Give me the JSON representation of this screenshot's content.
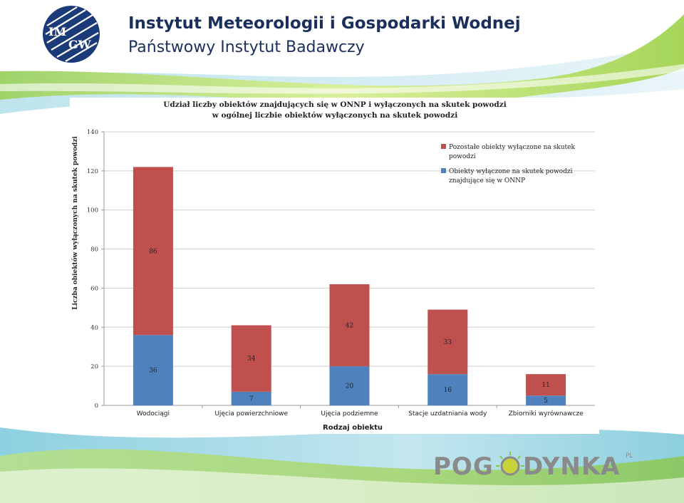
{
  "header": {
    "title": "Instytut Meteorologii i Gospodarki Wodnej",
    "subtitle": "Państwowy Instytut Badawczy",
    "logo_text_top": "IM",
    "logo_text_bottom": "GW"
  },
  "footer": {
    "brand_left": "POG",
    "brand_right": "DYNKA",
    "brand_suffix": "PL"
  },
  "colors": {
    "navy": "#1b2f5c",
    "red_series": "#c0504d",
    "blue_series": "#4f81bd",
    "green_band": "#8cc63f"
  },
  "chart_data": {
    "type": "bar",
    "stacked": true,
    "title_line1": "Udział liczby obiektów znajdujących się w ONNP i wyłączonych na skutek powodzi",
    "title_line2": "w ogólnej liczbie obiektów wyłączonych na skutek powodzi",
    "xlabel": "Rodzaj obiektu",
    "ylabel": "Liczba obiektów wyłączonych na skutek powodzi",
    "ylim": [
      0,
      140
    ],
    "yticks": [
      "0",
      "20",
      "40",
      "60",
      "80",
      "100",
      "120",
      "140"
    ],
    "categories": [
      "Wodociągi",
      "Ujęcia powierzchniowe",
      "Ujęcia podziemne",
      "Stacje uzdatniania wody",
      "Zbiorniki wyrównawcze"
    ],
    "series": [
      {
        "name": "Obiekty wyłączone na skutek powodzi znajdujące się w ONNP",
        "values": [
          36,
          7,
          20,
          16,
          5
        ],
        "color": "#4f81bd"
      },
      {
        "name": "Pozostałe obiekty wyłączone na skutek powodzi",
        "values": [
          86,
          34,
          42,
          33,
          11
        ],
        "color": "#c0504d"
      }
    ],
    "legend": [
      {
        "line1": "Pozostałe obiekty wyłączone na skutek",
        "line2": "powodzi",
        "color": "#c0504d"
      },
      {
        "line1": "Obiekty wyłączone na skutek powodzi",
        "line2": "znajdujące się w ONNP",
        "color": "#4f81bd"
      }
    ],
    "grid": true,
    "legend_position": "top-right"
  }
}
